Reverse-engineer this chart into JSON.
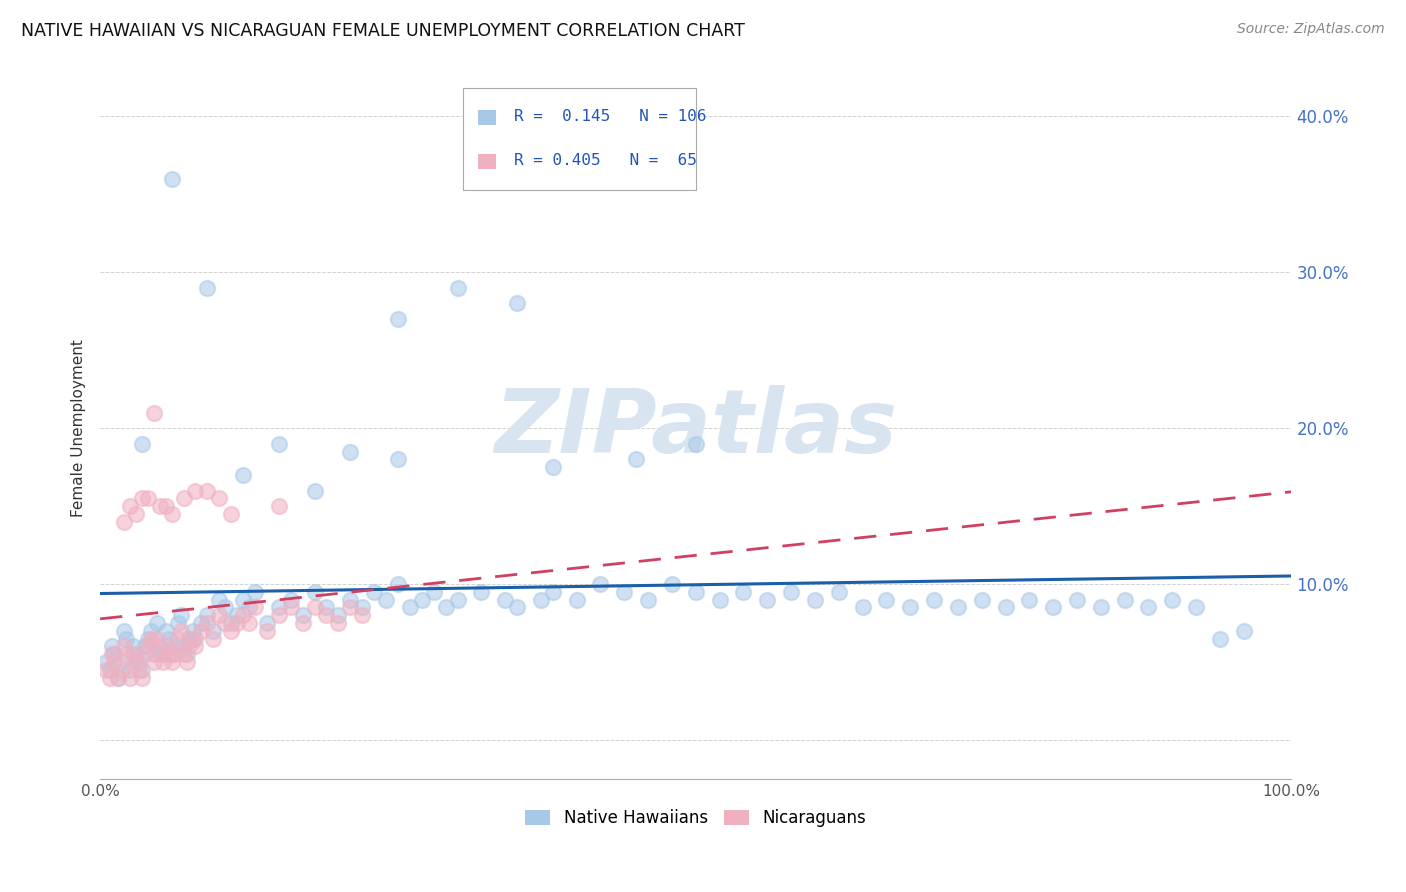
{
  "title": "NATIVE HAWAIIAN VS NICARAGUAN FEMALE UNEMPLOYMENT CORRELATION CHART",
  "source": "Source: ZipAtlas.com",
  "ylabel": "Female Unemployment",
  "xlim": [
    0,
    1.0
  ],
  "ylim": [
    -0.025,
    0.425
  ],
  "yticks": [
    0.0,
    0.1,
    0.2,
    0.3,
    0.4
  ],
  "ytick_labels": [
    "",
    "10.0%",
    "20.0%",
    "30.0%",
    "40.0%"
  ],
  "xticks": [
    0.0,
    0.2,
    0.4,
    0.6,
    0.8,
    1.0
  ],
  "xtick_labels": [
    "0.0%",
    "",
    "",
    "",
    "",
    "100.0%"
  ],
  "color_blue": "#a8c8e8",
  "color_pink": "#f0b0c0",
  "trendline_blue": "#1a5fa8",
  "trendline_pink": "#d04060",
  "watermark_color": "#d8e4f0",
  "R_blue": 0.145,
  "N_blue": 106,
  "R_pink": 0.405,
  "N_pink": 65,
  "blue_scatter_x": [
    0.005,
    0.008,
    0.01,
    0.012,
    0.015,
    0.018,
    0.02,
    0.022,
    0.025,
    0.028,
    0.03,
    0.033,
    0.035,
    0.038,
    0.04,
    0.043,
    0.045,
    0.048,
    0.05,
    0.053,
    0.055,
    0.058,
    0.06,
    0.063,
    0.065,
    0.068,
    0.07,
    0.073,
    0.075,
    0.078,
    0.08,
    0.085,
    0.09,
    0.095,
    0.1,
    0.105,
    0.11,
    0.115,
    0.12,
    0.125,
    0.13,
    0.14,
    0.15,
    0.16,
    0.17,
    0.18,
    0.19,
    0.2,
    0.21,
    0.22,
    0.23,
    0.24,
    0.25,
    0.26,
    0.27,
    0.28,
    0.29,
    0.3,
    0.32,
    0.34,
    0.35,
    0.37,
    0.38,
    0.4,
    0.42,
    0.44,
    0.46,
    0.48,
    0.5,
    0.52,
    0.54,
    0.56,
    0.58,
    0.6,
    0.62,
    0.64,
    0.66,
    0.68,
    0.7,
    0.72,
    0.74,
    0.76,
    0.78,
    0.8,
    0.82,
    0.84,
    0.86,
    0.88,
    0.9,
    0.92,
    0.94,
    0.96,
    0.035,
    0.06,
    0.09,
    0.12,
    0.15,
    0.18,
    0.21,
    0.25,
    0.3,
    0.35,
    0.25,
    0.45,
    0.38,
    0.5
  ],
  "blue_scatter_y": [
    0.05,
    0.045,
    0.06,
    0.055,
    0.04,
    0.05,
    0.07,
    0.065,
    0.045,
    0.06,
    0.055,
    0.05,
    0.045,
    0.06,
    0.065,
    0.07,
    0.055,
    0.075,
    0.06,
    0.055,
    0.07,
    0.065,
    0.055,
    0.06,
    0.075,
    0.08,
    0.06,
    0.055,
    0.065,
    0.07,
    0.065,
    0.075,
    0.08,
    0.07,
    0.09,
    0.085,
    0.075,
    0.08,
    0.09,
    0.085,
    0.095,
    0.075,
    0.085,
    0.09,
    0.08,
    0.095,
    0.085,
    0.08,
    0.09,
    0.085,
    0.095,
    0.09,
    0.1,
    0.085,
    0.09,
    0.095,
    0.085,
    0.09,
    0.095,
    0.09,
    0.085,
    0.09,
    0.095,
    0.09,
    0.1,
    0.095,
    0.09,
    0.1,
    0.095,
    0.09,
    0.095,
    0.09,
    0.095,
    0.09,
    0.095,
    0.085,
    0.09,
    0.085,
    0.09,
    0.085,
    0.09,
    0.085,
    0.09,
    0.085,
    0.09,
    0.085,
    0.09,
    0.085,
    0.09,
    0.085,
    0.065,
    0.07,
    0.19,
    0.36,
    0.29,
    0.17,
    0.19,
    0.16,
    0.185,
    0.18,
    0.29,
    0.28,
    0.27,
    0.18,
    0.175,
    0.19
  ],
  "pink_scatter_x": [
    0.005,
    0.008,
    0.01,
    0.012,
    0.015,
    0.018,
    0.02,
    0.022,
    0.025,
    0.028,
    0.03,
    0.033,
    0.035,
    0.038,
    0.04,
    0.043,
    0.045,
    0.048,
    0.05,
    0.053,
    0.055,
    0.058,
    0.06,
    0.063,
    0.065,
    0.068,
    0.07,
    0.073,
    0.075,
    0.078,
    0.08,
    0.085,
    0.09,
    0.095,
    0.1,
    0.105,
    0.11,
    0.115,
    0.12,
    0.125,
    0.13,
    0.14,
    0.15,
    0.16,
    0.17,
    0.18,
    0.19,
    0.2,
    0.21,
    0.22,
    0.025,
    0.03,
    0.04,
    0.05,
    0.06,
    0.08,
    0.1,
    0.15,
    0.02,
    0.035,
    0.07,
    0.09,
    0.11,
    0.055,
    0.045
  ],
  "pink_scatter_y": [
    0.045,
    0.04,
    0.055,
    0.05,
    0.04,
    0.045,
    0.06,
    0.055,
    0.04,
    0.055,
    0.05,
    0.045,
    0.04,
    0.055,
    0.06,
    0.065,
    0.05,
    0.065,
    0.055,
    0.05,
    0.06,
    0.055,
    0.05,
    0.055,
    0.065,
    0.07,
    0.055,
    0.05,
    0.06,
    0.065,
    0.06,
    0.07,
    0.075,
    0.065,
    0.08,
    0.075,
    0.07,
    0.075,
    0.08,
    0.075,
    0.085,
    0.07,
    0.08,
    0.085,
    0.075,
    0.085,
    0.08,
    0.075,
    0.085,
    0.08,
    0.15,
    0.145,
    0.155,
    0.15,
    0.145,
    0.16,
    0.155,
    0.15,
    0.14,
    0.155,
    0.155,
    0.16,
    0.145,
    0.15,
    0.21
  ]
}
